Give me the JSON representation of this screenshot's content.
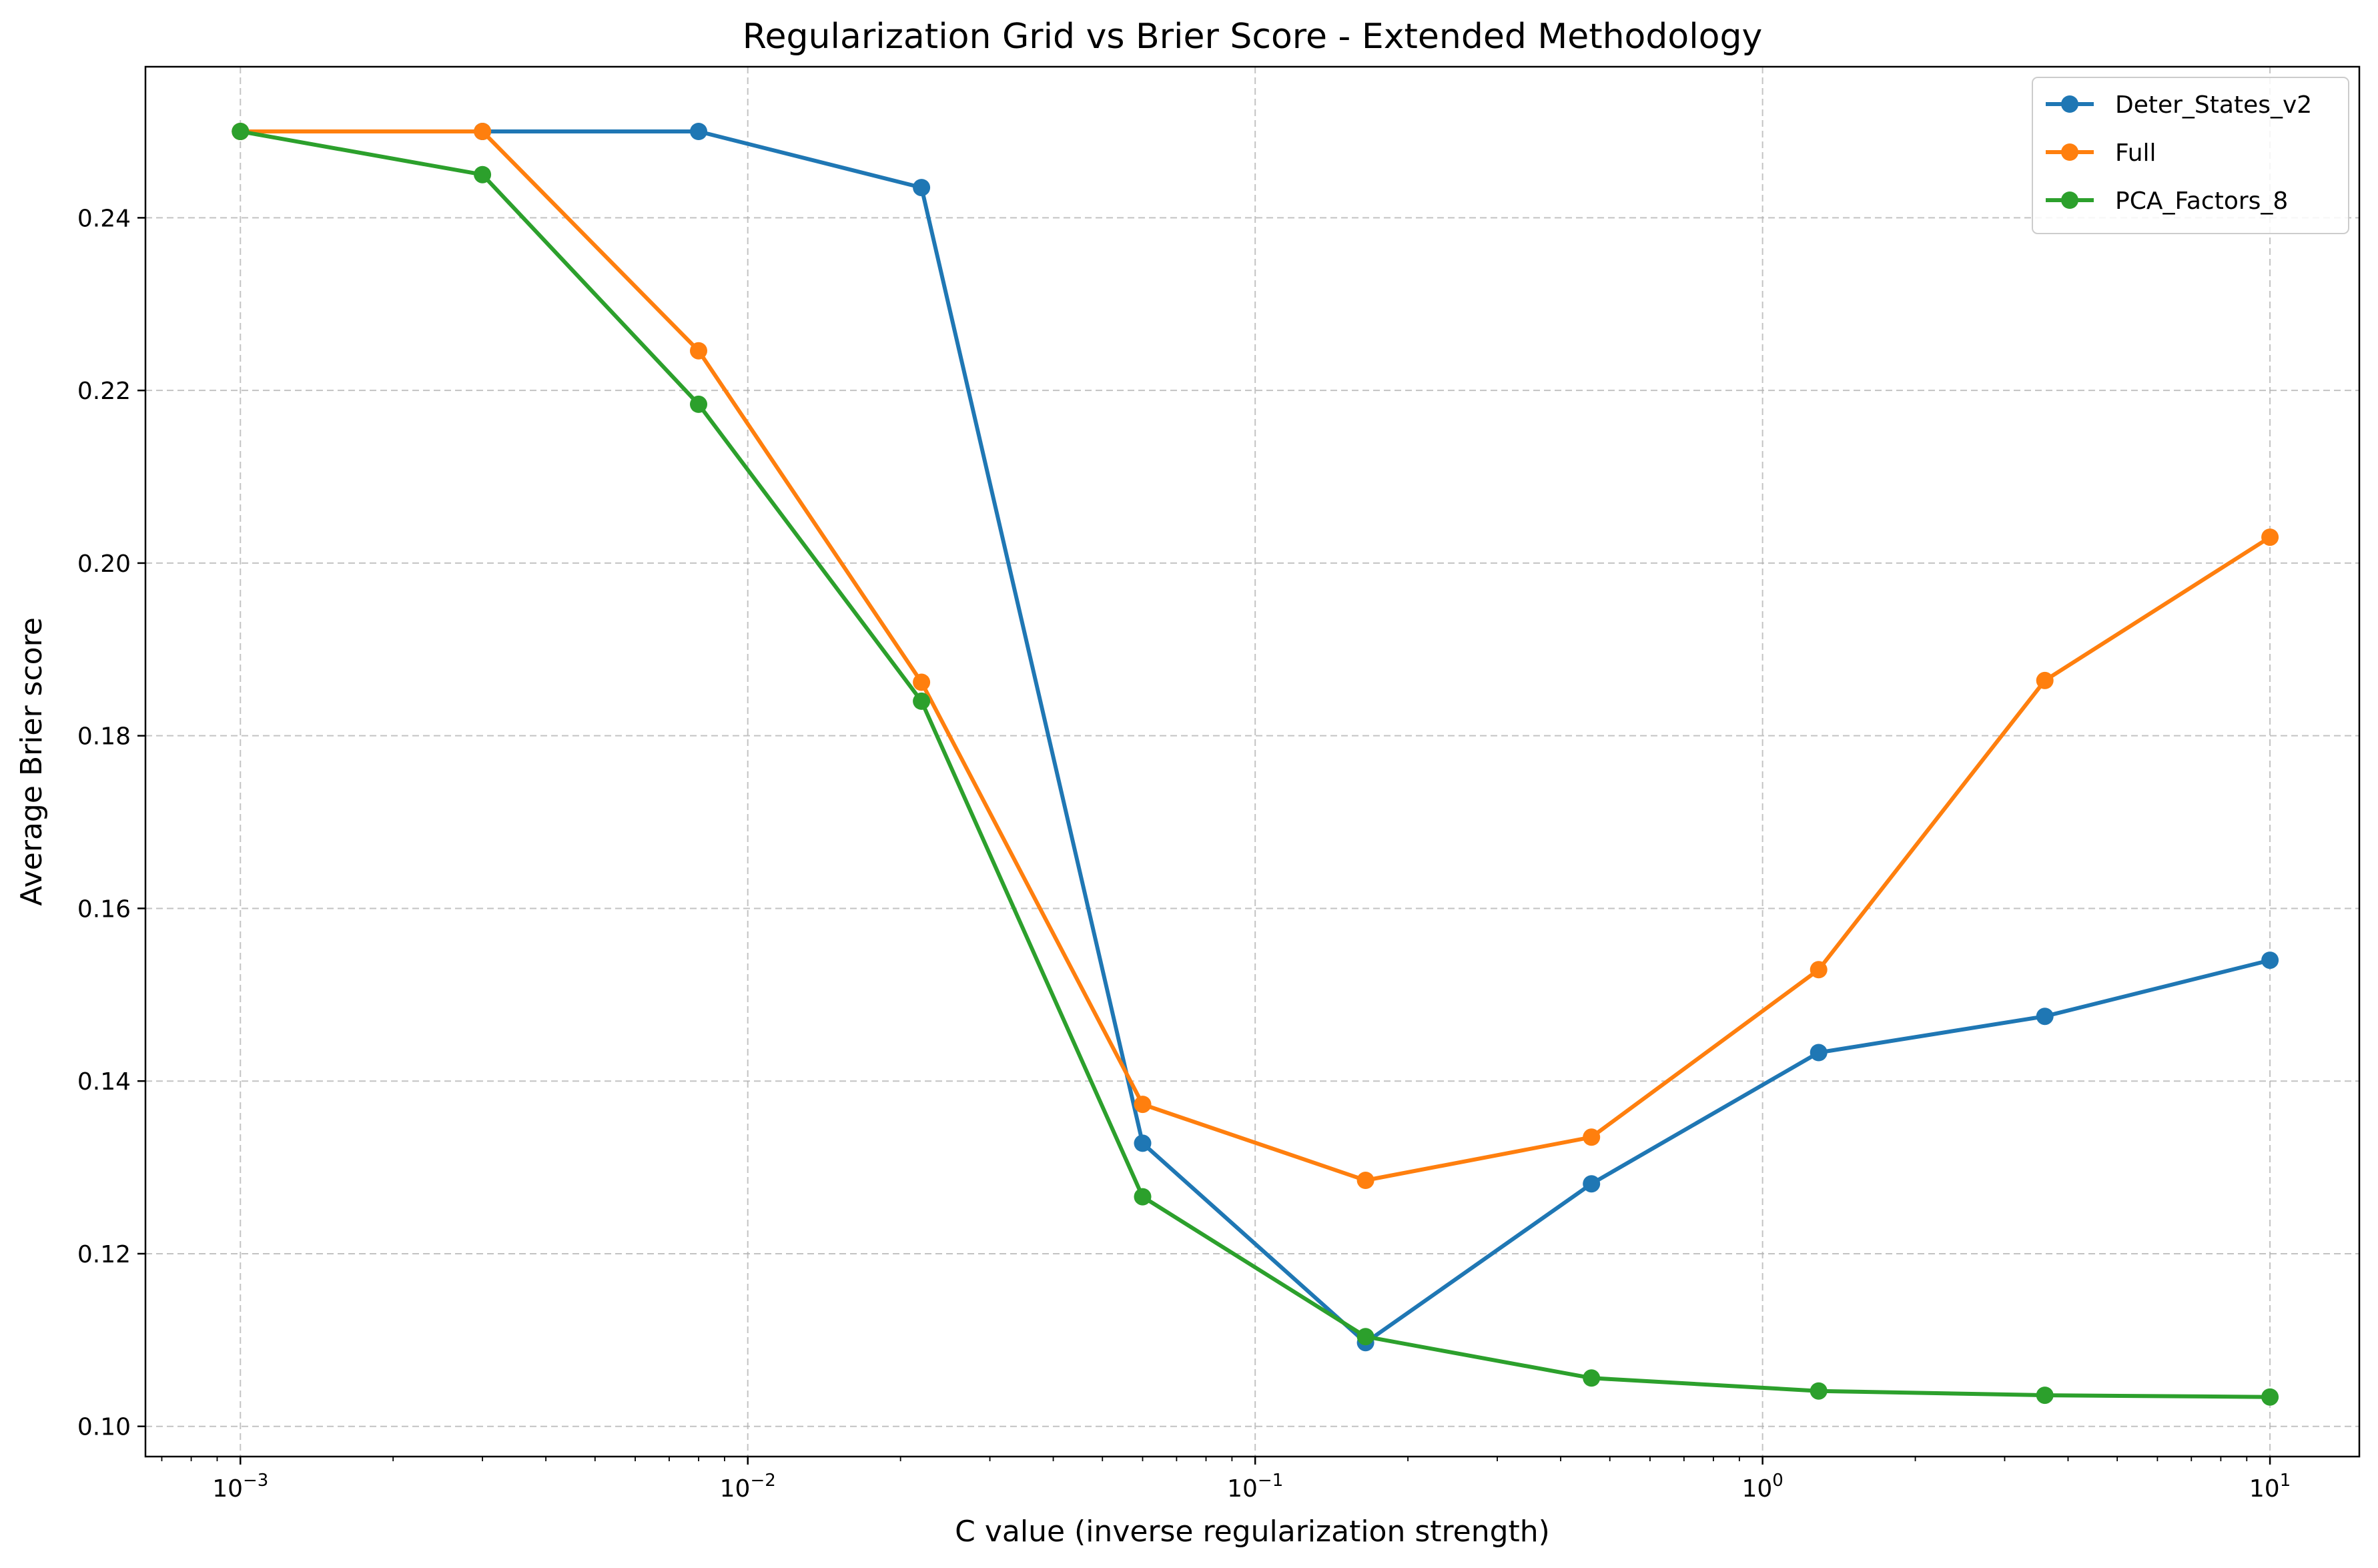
{
  "chart_data": {
    "type": "line",
    "title": "Regularization Grid vs Brier Score - Extended Methodology",
    "xlabel": "C value (inverse regularization strength)",
    "ylabel": "Average Brier score",
    "xscale": "log",
    "xlim": [
      0.00065,
      15
    ],
    "ylim": [
      0.0965,
      0.2575
    ],
    "x": [
      0.001,
      0.003,
      0.008,
      0.022,
      0.06,
      0.165,
      0.46,
      1.29,
      3.6,
      10
    ],
    "x_ticks": [
      {
        "value": 0.001,
        "base": "10",
        "exp": "−3"
      },
      {
        "value": 0.01,
        "base": "10",
        "exp": "−2"
      },
      {
        "value": 0.1,
        "base": "10",
        "exp": "−1"
      },
      {
        "value": 1,
        "base": "10",
        "exp": "0"
      },
      {
        "value": 10,
        "base": "10",
        "exp": "1"
      }
    ],
    "y_ticks": [
      "0.10",
      "0.12",
      "0.14",
      "0.16",
      "0.18",
      "0.20",
      "0.22",
      "0.24"
    ],
    "grid": true,
    "legend_position": "top-right",
    "series": [
      {
        "name": "Deter_States_v2",
        "color": "#1f77b4",
        "values": [
          0.25,
          0.25,
          0.25,
          0.2435,
          0.1328,
          0.1097,
          0.1281,
          0.1433,
          0.1475,
          0.154
        ]
      },
      {
        "name": "Full",
        "color": "#ff7f0e",
        "values": [
          0.25,
          0.25,
          0.2246,
          0.1862,
          0.1373,
          0.1285,
          0.1335,
          0.1529,
          0.1864,
          0.203
        ]
      },
      {
        "name": "PCA_Factors_8",
        "color": "#2ca02c",
        "values": [
          0.25,
          0.245,
          0.2184,
          0.184,
          0.1266,
          0.1104,
          0.1056,
          0.1041,
          0.1036,
          0.1034
        ]
      }
    ]
  }
}
